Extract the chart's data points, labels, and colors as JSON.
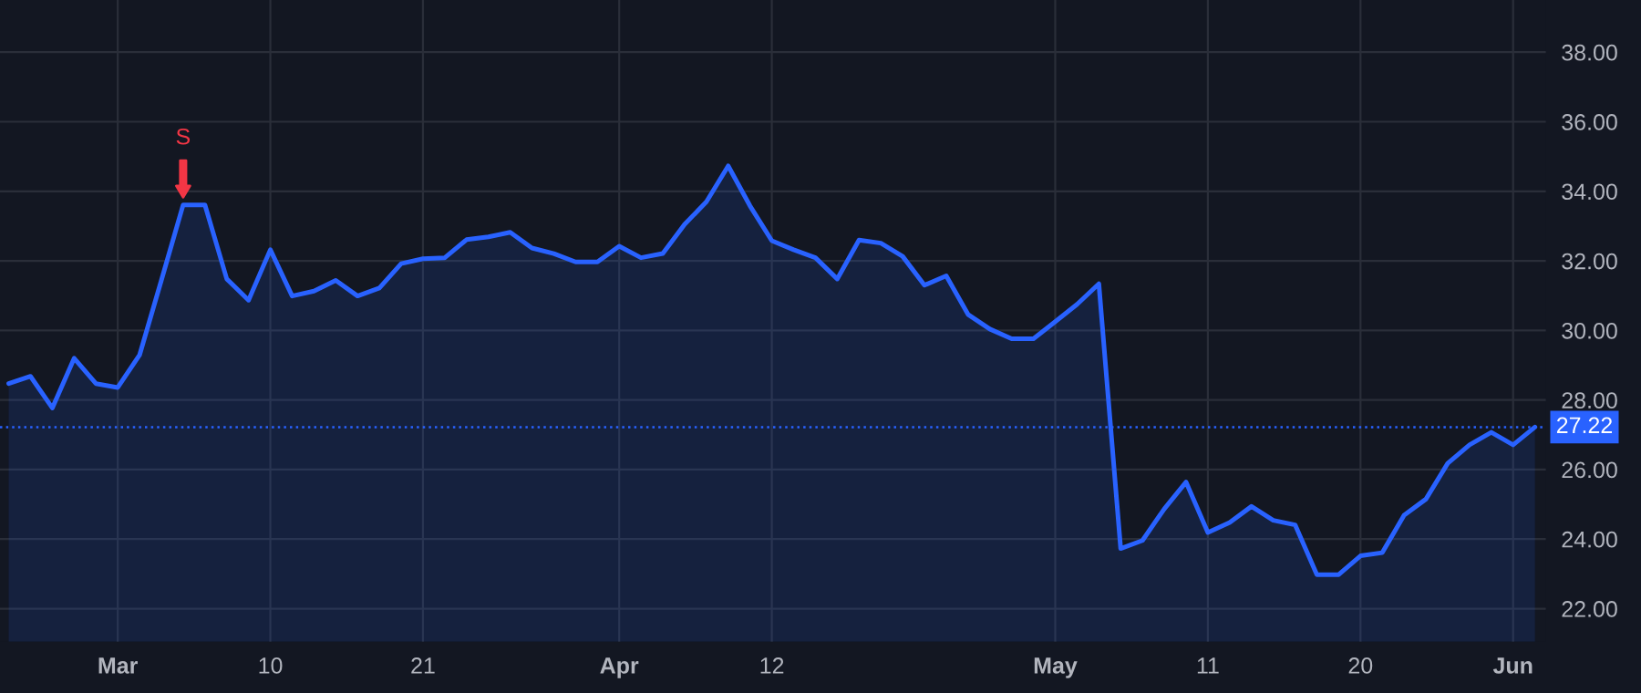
{
  "chart_data": {
    "type": "area",
    "categories": [
      null,
      null,
      null,
      null,
      null,
      "Mar",
      null,
      null,
      null,
      null,
      null,
      null,
      "10",
      null,
      null,
      null,
      null,
      null,
      null,
      "21",
      null,
      null,
      null,
      null,
      null,
      null,
      null,
      null,
      "Apr",
      null,
      null,
      null,
      null,
      null,
      null,
      "12",
      null,
      null,
      null,
      null,
      null,
      null,
      null,
      null,
      null,
      null,
      null,
      null,
      "May",
      null,
      null,
      null,
      null,
      null,
      null,
      "11",
      null,
      null,
      null,
      null,
      null,
      null,
      "20",
      null,
      null,
      null,
      null,
      null,
      null,
      "Jun",
      null
    ],
    "series": [
      {
        "color": "#2962ff",
        "values": [
          28.47,
          28.68,
          27.77,
          29.2,
          28.47,
          28.36,
          29.29,
          31.44,
          33.61,
          33.61,
          31.48,
          30.87,
          32.32,
          30.99,
          31.13,
          31.44,
          30.99,
          31.22,
          31.92,
          32.06,
          32.09,
          32.61,
          32.69,
          32.82,
          32.37,
          32.21,
          31.97,
          31.97,
          32.42,
          32.09,
          32.21,
          33.05,
          33.7,
          34.73,
          33.58,
          32.58,
          32.32,
          32.09,
          31.48,
          32.6,
          32.51,
          32.13,
          31.3,
          31.57,
          30.46,
          30.04,
          29.76,
          29.76,
          30.25,
          30.75,
          31.34,
          23.73,
          23.96,
          24.87,
          25.64,
          24.19,
          24.48,
          24.94,
          24.54,
          24.41,
          22.98,
          22.98,
          23.52,
          23.61,
          24.69,
          25.15,
          26.18,
          26.71,
          27.07,
          26.71,
          27.22
        ]
      }
    ],
    "ylim": [
      21.05,
      39.5
    ],
    "yticks": [
      {
        "value": 22,
        "label": "22.00"
      },
      {
        "value": 24,
        "label": "24.00"
      },
      {
        "value": 26,
        "label": "26.00"
      },
      {
        "value": 28,
        "label": "28.00"
      },
      {
        "value": 30,
        "label": "30.00"
      },
      {
        "value": 32,
        "label": "32.00"
      },
      {
        "value": 34,
        "label": "34.00"
      },
      {
        "value": 36,
        "label": "36.00"
      },
      {
        "value": 38,
        "label": "38.00"
      }
    ],
    "ref_lines": [
      {
        "axis": "y",
        "value": 27.22,
        "label": "27.22",
        "color": "#2962ff",
        "line_style": "dotted"
      }
    ],
    "annotations": [
      {
        "text": "S",
        "y": 33.61
      }
    ],
    "grid": true,
    "legend": false
  }
}
